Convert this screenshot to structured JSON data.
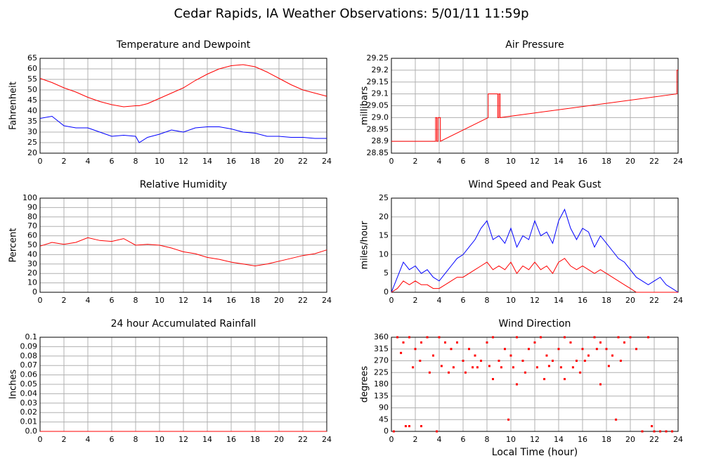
{
  "title": "Cedar Rapids, IA Weather Observations: 5/01/11 11:59p",
  "chart_data": [
    {
      "type": "line",
      "title": "Temperature and Dewpoint",
      "ylabel": "Fahrenheit",
      "x": [
        0,
        1,
        2,
        3,
        4,
        5,
        6,
        7,
        8,
        8.3,
        9,
        10,
        11,
        12,
        13,
        14,
        15,
        16,
        17,
        18,
        19,
        20,
        21,
        22,
        23,
        24
      ],
      "series": [
        {
          "color": "#ff0000",
          "values": [
            55.5,
            53.5,
            51,
            49,
            46.5,
            44.5,
            43,
            42,
            42.5,
            42.5,
            43.5,
            46,
            48.5,
            51,
            54.5,
            57.5,
            60,
            61.5,
            62,
            61,
            58.5,
            55.5,
            52.5,
            50,
            48.5,
            47
          ]
        },
        {
          "color": "#0000ff",
          "values": [
            36.5,
            37.5,
            33,
            32,
            32,
            30,
            28,
            28.5,
            28,
            25,
            27.5,
            29,
            31,
            30,
            32,
            32.5,
            32.5,
            31.5,
            30,
            29.5,
            28,
            28,
            27.5,
            27.5,
            27,
            27
          ]
        }
      ],
      "xlim": [
        0,
        24
      ],
      "xticks": [
        0,
        2,
        4,
        6,
        8,
        10,
        12,
        14,
        16,
        18,
        20,
        22,
        24
      ],
      "ylim": [
        20,
        65
      ],
      "yticks": [
        20,
        25,
        30,
        35,
        40,
        45,
        50,
        55,
        60,
        65
      ],
      "grid": true
    },
    {
      "type": "line",
      "title": "Air Pressure",
      "ylabel": "millibars",
      "x": [
        0,
        3.7,
        3.7,
        3.8,
        3.8,
        3.9,
        3.9,
        4.1,
        4.1,
        8.1,
        8.1,
        8.9,
        8.9,
        9.0,
        9.0,
        9.1,
        9.1,
        23.9,
        23.9,
        24
      ],
      "series": [
        {
          "color": "#ff0000",
          "values": [
            28.9,
            28.9,
            29,
            29,
            28.9,
            28.9,
            29,
            29,
            28.9,
            29,
            29.1,
            29.1,
            29,
            29,
            29.1,
            29.1,
            29,
            29.1,
            29.2,
            29.2
          ]
        }
      ],
      "xlim": [
        0,
        24
      ],
      "xticks": [
        0,
        2,
        4,
        6,
        8,
        10,
        12,
        14,
        16,
        18,
        20,
        22,
        24
      ],
      "ylim": [
        28.85,
        29.25
      ],
      "yticks": [
        28.85,
        28.9,
        28.95,
        {
          "value": 29,
          "label": "29.0"
        },
        29.05,
        29.1,
        29.15,
        29.2,
        29.25
      ],
      "grid": true
    },
    {
      "type": "line",
      "title": "Relative Humidity",
      "ylabel": "Percent",
      "x": [
        0,
        1,
        2,
        3,
        4,
        5,
        6,
        7,
        8,
        9,
        10,
        11,
        12,
        13,
        14,
        15,
        16,
        17,
        18,
        19,
        20,
        21,
        22,
        23,
        24
      ],
      "series": [
        {
          "color": "#ff0000",
          "values": [
            49,
            53,
            51,
            53,
            58,
            55,
            54,
            57,
            50,
            51,
            50,
            47,
            43,
            41,
            37,
            35,
            32,
            30,
            28,
            30,
            33,
            36,
            39,
            41,
            45
          ]
        }
      ],
      "xlim": [
        0,
        24
      ],
      "xticks": [
        0,
        2,
        4,
        6,
        8,
        10,
        12,
        14,
        16,
        18,
        20,
        22,
        24
      ],
      "ylim": [
        0,
        100
      ],
      "yticks": [
        0,
        10,
        20,
        30,
        40,
        50,
        60,
        70,
        80,
        90,
        100
      ],
      "grid": true
    },
    {
      "type": "line",
      "title": "Wind Speed and Peak Gust",
      "ylabel": "miles/hour",
      "x": [
        0,
        0.5,
        1,
        1.5,
        2,
        2.5,
        3,
        3.5,
        4,
        4.5,
        5,
        5.5,
        6,
        6.5,
        7,
        7.5,
        8,
        8.5,
        9,
        9.5,
        10,
        10.5,
        11,
        11.5,
        12,
        12.5,
        13,
        13.5,
        14,
        14.5,
        15,
        15.5,
        16,
        16.5,
        17,
        17.5,
        18,
        18.5,
        19,
        19.5,
        20,
        20.5,
        21,
        21.5,
        22,
        22.5,
        23,
        23.5,
        24
      ],
      "series": [
        {
          "color": "#0000ff",
          "values": [
            0,
            4,
            8,
            6,
            7,
            5,
            6,
            4,
            3,
            5,
            7,
            9,
            10,
            12,
            14,
            17,
            19,
            14,
            15,
            13,
            17,
            12,
            15,
            14,
            19,
            15,
            16,
            13,
            19,
            22,
            17,
            14,
            17,
            16,
            12,
            15,
            13,
            11,
            9,
            8,
            6,
            4,
            3,
            2,
            3,
            4,
            2,
            1,
            0
          ]
        },
        {
          "color": "#ff0000",
          "values": [
            0,
            1,
            3,
            2,
            3,
            2,
            2,
            1,
            1,
            2,
            3,
            4,
            4,
            5,
            6,
            7,
            8,
            6,
            7,
            6,
            8,
            5,
            7,
            6,
            8,
            6,
            7,
            5,
            8,
            9,
            7,
            6,
            7,
            6,
            5,
            6,
            5,
            4,
            3,
            2,
            1,
            0,
            0,
            0,
            0,
            0,
            0,
            0,
            0
          ]
        }
      ],
      "xlim": [
        0,
        24
      ],
      "xticks": [
        0,
        2,
        4,
        6,
        8,
        10,
        12,
        14,
        16,
        18,
        20,
        22,
        24
      ],
      "ylim": [
        0,
        25
      ],
      "yticks": [
        0,
        5,
        10,
        15,
        20,
        25
      ],
      "grid": true
    },
    {
      "type": "line",
      "title": "24 hour Accumulated Rainfall",
      "ylabel": "Inches",
      "x": [
        0,
        24
      ],
      "series": [
        {
          "color": "#ff0000",
          "values": [
            0,
            0
          ]
        }
      ],
      "xlim": [
        0,
        24
      ],
      "xticks": [
        0,
        2,
        4,
        6,
        8,
        10,
        12,
        14,
        16,
        18,
        20,
        22,
        24
      ],
      "ylim": [
        0,
        0.1
      ],
      "yticks": [
        {
          "value": 0,
          "label": "0.0"
        },
        0.01,
        0.02,
        0.03,
        0.04,
        0.05,
        0.06,
        0.07,
        0.08,
        0.09,
        0.1
      ],
      "grid": true
    },
    {
      "type": "scatter",
      "title": "Wind Direction",
      "ylabel": "degrees",
      "xlabel": "Local Time (hour)",
      "color": "#ff0000",
      "x": [
        0.2,
        0.5,
        1.0,
        1.5,
        2.0,
        2.5,
        3.0,
        3.5,
        4.0,
        4.5,
        5.0,
        5.5,
        6.0,
        6.5,
        7.0,
        7.5,
        8.0,
        8.5,
        9.0,
        9.5,
        10.0,
        10.5,
        11.0,
        11.5,
        12.0,
        12.5,
        13.0,
        13.5,
        14.0,
        14.5,
        15.0,
        15.5,
        16.0,
        16.5,
        17.0,
        17.5,
        18.0,
        18.5,
        19.0,
        19.5,
        20.0,
        20.5,
        21.0,
        21.5,
        22.0,
        22.5,
        23.0,
        23.5,
        1.2,
        1.8,
        2.4,
        3.2,
        4.2,
        5.2,
        6.2,
        7.2,
        8.2,
        9.2,
        10.2,
        11.2,
        12.2,
        13.2,
        14.2,
        15.2,
        16.2,
        17.2,
        18.2,
        19.2,
        1.5,
        2.5,
        4.8,
        8.5,
        10.5,
        14.5,
        17.5,
        0.8,
        3.8,
        6.8,
        9.8,
        12.8,
        15.8,
        18.8,
        21.8
      ],
      "values": [
        0,
        360,
        340,
        360,
        315,
        340,
        360,
        290,
        360,
        340,
        315,
        340,
        270,
        315,
        290,
        270,
        340,
        360,
        270,
        315,
        290,
        360,
        270,
        315,
        340,
        360,
        290,
        270,
        315,
        360,
        340,
        270,
        315,
        290,
        360,
        340,
        315,
        290,
        360,
        340,
        360,
        315,
        0,
        360,
        0,
        0,
        0,
        0,
        20,
        245,
        270,
        225,
        250,
        245,
        225,
        245,
        250,
        245,
        245,
        225,
        245,
        250,
        245,
        245,
        270,
        315,
        250,
        270,
        20,
        20,
        225,
        200,
        180,
        200,
        180,
        300,
        0,
        245,
        45,
        200,
        225,
        45,
        20
      ],
      "xlim": [
        0,
        24
      ],
      "xticks": [
        0,
        2,
        4,
        6,
        8,
        10,
        12,
        14,
        16,
        18,
        20,
        22,
        24
      ],
      "ylim": [
        0,
        360
      ],
      "yticks": [
        0,
        45,
        90,
        135,
        180,
        225,
        270,
        315,
        360
      ],
      "grid": true
    }
  ]
}
